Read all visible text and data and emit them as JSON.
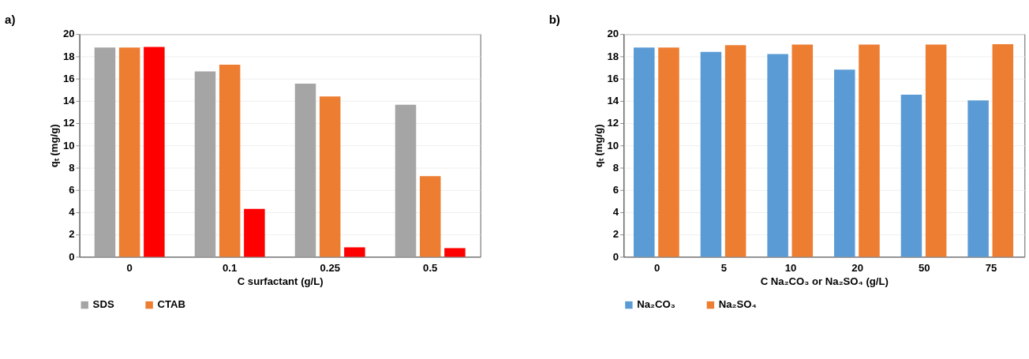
{
  "chart_data": [
    {
      "type": "bar",
      "title": "a)",
      "xlabel": "C surfactant (g/L)",
      "ylabel": "qₜ (mg/g)",
      "categories": [
        "0",
        "0.1",
        "0.25",
        "0.5"
      ],
      "ylim": [
        0,
        20
      ],
      "yticks": [
        0,
        2,
        4,
        6,
        8,
        10,
        12,
        14,
        16,
        18,
        20
      ],
      "grid": "y",
      "legend": "bottom left",
      "series": [
        {
          "name": "SDS",
          "color": "#a5a5a5",
          "values": [
            18.8,
            16.65,
            15.55,
            13.65
          ]
        },
        {
          "name": "CTAB",
          "color": "#ed7d31",
          "values": [
            18.8,
            17.25,
            14.4,
            7.25
          ]
        },
        {
          "color": "#ff0000",
          "values": [
            18.85,
            4.3,
            0.85,
            0.78
          ]
        }
      ]
    },
    {
      "type": "bar",
      "title": "b)",
      "xlabel": "C Na₂CO₃ or Na₂SO₄ (g/L)",
      "ylabel": "qₜ (mg/g)",
      "categories": [
        "0",
        "5",
        "10",
        "20",
        "50",
        "75"
      ],
      "ylim": [
        0,
        20
      ],
      "yticks": [
        0,
        2,
        4,
        6,
        8,
        10,
        12,
        14,
        16,
        18,
        20
      ],
      "grid": "y",
      "legend": "bottom left",
      "series": [
        {
          "name": "Na₂CO₃",
          "color": "#5b9bd5",
          "values": [
            18.8,
            18.4,
            18.2,
            16.8,
            14.55,
            14.05
          ]
        },
        {
          "name": "Na₂SO₄",
          "color": "#ed7d31",
          "values": [
            18.8,
            19.0,
            19.05,
            19.05,
            19.05,
            19.1
          ]
        }
      ]
    }
  ]
}
